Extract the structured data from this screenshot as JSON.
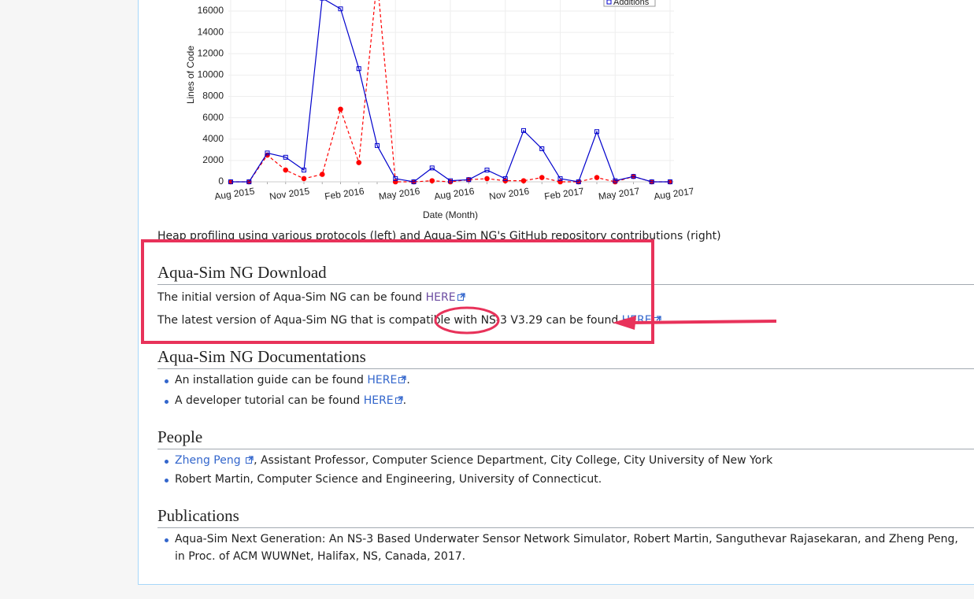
{
  "chart_data": {
    "type": "line",
    "categories": [
      "Aug 2015",
      null,
      null,
      "Nov 2015",
      null,
      null,
      "Feb 2016",
      null,
      null,
      "May 2016",
      null,
      null,
      "Aug 2016",
      null,
      null,
      "Nov 2016",
      null,
      null,
      "Feb 2017",
      null,
      null,
      "May 2017",
      null,
      null,
      "Aug 2017"
    ],
    "series": [
      {
        "name": "Additions",
        "color": "#0000cc",
        "values": [
          0,
          0,
          2700,
          2300,
          1100,
          17200,
          16200,
          10600,
          3400,
          300,
          0,
          1300,
          100,
          200,
          1100,
          300,
          4800,
          3100,
          300,
          0,
          4700,
          100,
          500,
          0,
          0
        ]
      },
      {
        "color": "#ff0000",
        "values": [
          0,
          0,
          2500,
          1100,
          300,
          700,
          6800,
          1800,
          19000,
          0,
          0,
          100,
          0,
          200,
          300,
          100,
          100,
          400,
          0,
          0,
          400,
          0,
          500,
          0,
          0
        ]
      }
    ],
    "ylim": [
      0,
      17000
    ],
    "yticks": [
      0,
      2000,
      4000,
      6000,
      8000,
      10000,
      12000,
      14000,
      16000
    ],
    "y_label": "Lines of Code",
    "x_label": "Date (Month)",
    "grid": true,
    "legend": "top-right"
  },
  "page": {
    "caption": "Heap profiling using various protocols (left) and Aqua-Sim NG's GitHub repository contributions (right)",
    "sections": [
      {
        "heading": "Aqua-Sim NG Download",
        "paragraphs": [
          {
            "before": "The initial version of Aqua-Sim NG can be found ",
            "link": "HERE"
          },
          {
            "before": "The latest version of Aqua-Sim NG that is compatible with NS-3 V3.29 can be found ",
            "link": "HERE"
          }
        ]
      },
      {
        "heading": "Aqua-Sim NG Documentations",
        "items": [
          {
            "before": "An installation guide can be found ",
            "link": "HERE",
            "after": "."
          },
          {
            "before": "A developer tutorial can be found ",
            "link": "HERE",
            "after": "."
          }
        ]
      },
      {
        "heading": "People",
        "items": [
          {
            "link": "Zheng Peng ",
            "after": ", Assistant Professor, Computer Science Department, City College, City University of New York"
          },
          {
            "before": "Robert Martin, Computer Science and Engineering, University of Connecticut."
          }
        ]
      },
      {
        "heading": "Publications",
        "items": [
          {
            "before": "Aqua-Sim Next Generation: An NS-3 Based Underwater Sensor Network Simulator, Robert Martin, Sanguthevar Rajasekaran, and Zheng Peng, in Proc. of ACM WUWNet, Halifax, NS, Canada, 2017."
          }
        ]
      }
    ]
  }
}
